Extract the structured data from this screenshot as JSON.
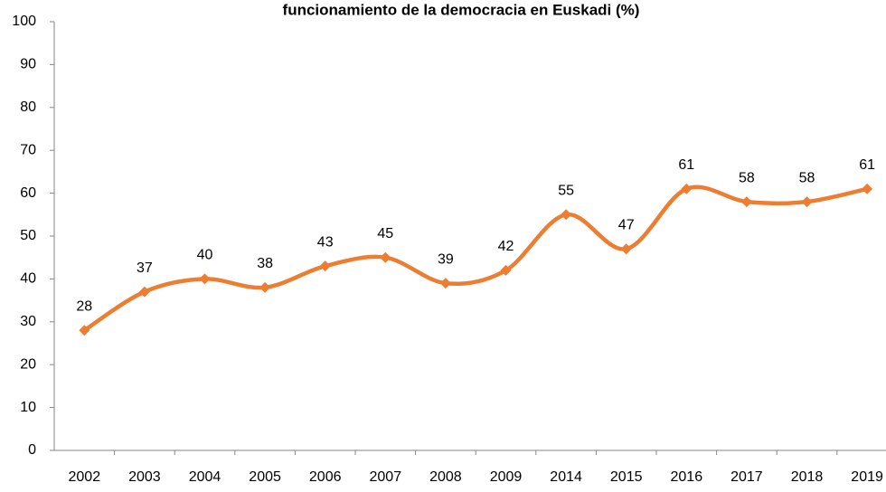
{
  "chart_data": {
    "type": "line",
    "title": "funcionamiento de la democracia en Euskadi (%)",
    "categories": [
      "2002",
      "2003",
      "2004",
      "2005",
      "2006",
      "2007",
      "2008",
      "2009",
      "2014",
      "2015",
      "2016",
      "2017",
      "2018",
      "2019"
    ],
    "values": [
      28,
      37,
      40,
      38,
      43,
      45,
      39,
      42,
      55,
      47,
      61,
      58,
      58,
      61
    ],
    "color": "#ed7d31",
    "ylim": [
      0,
      100
    ],
    "yticks": [
      0,
      10,
      20,
      30,
      40,
      50,
      60,
      70,
      80,
      90,
      100
    ],
    "grid": false,
    "smooth": true
  }
}
